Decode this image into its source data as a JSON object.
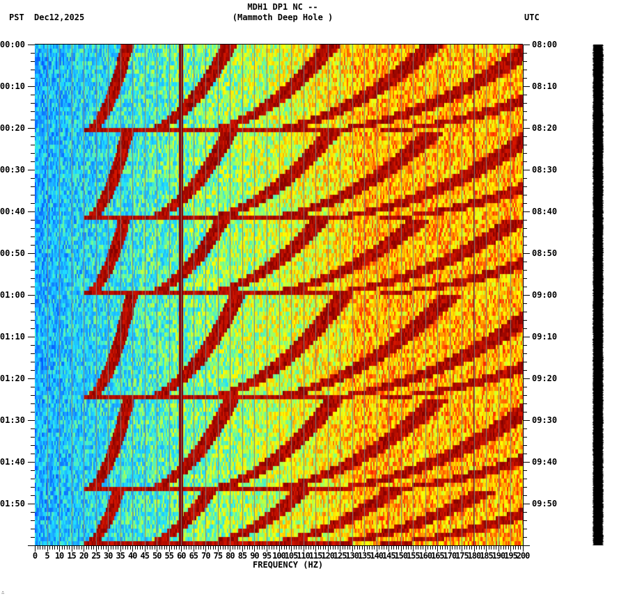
{
  "header": {
    "title_line1": "MDH1 DP1 NC --",
    "title_line2": "(Mammoth Deep Hole )",
    "left_timezone": "PST",
    "date": "Dec12,2025",
    "right_timezone": "UTC"
  },
  "footer": {
    "corner_mark": "∴"
  },
  "chart_data": {
    "type": "heatmap",
    "title": "MDH1 DP1 NC -- (Mammoth Deep Hole )",
    "subtitle": "Dec12,2025",
    "xlabel": "FREQUENCY (HZ)",
    "ylabel_left": "PST",
    "ylabel_right": "UTC",
    "xlim": [
      0,
      200
    ],
    "x_ticks": [
      0,
      5,
      10,
      15,
      20,
      25,
      30,
      35,
      40,
      45,
      50,
      55,
      60,
      65,
      70,
      75,
      80,
      85,
      90,
      95,
      100,
      105,
      110,
      115,
      120,
      125,
      130,
      135,
      140,
      145,
      150,
      155,
      160,
      165,
      170,
      175,
      180,
      185,
      190,
      195,
      200
    ],
    "x_tick_labels": [
      "0",
      "5",
      "10",
      "15",
      "20",
      "25",
      "30",
      "35",
      "40",
      "45",
      "50",
      "55",
      "60",
      "65",
      "70",
      "75",
      "80",
      "85",
      "90",
      "95",
      "100",
      "105",
      "110",
      "115",
      "120",
      "125",
      "130",
      "135",
      "140",
      "145",
      "150",
      "155",
      "160",
      "165",
      "170",
      "175",
      "180",
      "185",
      "190",
      "195",
      "200"
    ],
    "x_minor_tick_step": 1,
    "y_minutes_range": [
      0,
      120
    ],
    "y_ticks_left": [
      "00:00",
      "00:10",
      "00:20",
      "00:30",
      "00:40",
      "00:50",
      "01:00",
      "01:10",
      "01:20",
      "01:30",
      "01:40",
      "01:50"
    ],
    "y_ticks_right": [
      "08:00",
      "08:10",
      "08:20",
      "08:30",
      "08:40",
      "08:50",
      "09:00",
      "09:10",
      "09:20",
      "09:30",
      "09:40",
      "09:50"
    ],
    "y_minor_tick_step_min": 2,
    "grid": {
      "vertical_every_hz": 5,
      "color": "#808080"
    },
    "colormap": [
      "#0050ff",
      "#1aa0ff",
      "#20e0ff",
      "#80ff80",
      "#ffff00",
      "#ffa000",
      "#ff2000",
      "#800000"
    ],
    "persistent_lines_hz": [
      60,
      180
    ],
    "chirp_events": [
      {
        "start_min": 0,
        "end_min": 21
      },
      {
        "start_min": 21,
        "end_min": 42
      },
      {
        "start_min": 42,
        "end_min": 60
      },
      {
        "start_min": 60,
        "end_min": 85
      },
      {
        "start_min": 85,
        "end_min": 107
      },
      {
        "start_min": 107,
        "end_min": 120
      }
    ],
    "chirp_harmonics_hz_at_end": [
      20,
      42,
      64,
      86,
      108,
      130
    ],
    "background_trend": "low power (blue) 0-25 Hz, rising to yellow/orange above 130 Hz",
    "side_panel": "seismogram trace (black waveform), time-aligned with spectrogram"
  }
}
